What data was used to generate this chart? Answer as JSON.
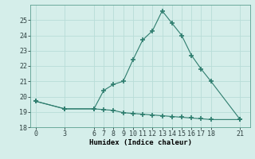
{
  "xlabel": "Humidex (Indice chaleur)",
  "x_upper": [
    0,
    3,
    6,
    7,
    8,
    9,
    10,
    11,
    12,
    13,
    14,
    15,
    16,
    17,
    18,
    21
  ],
  "y_upper": [
    19.7,
    19.2,
    19.2,
    20.4,
    20.8,
    21.0,
    22.4,
    23.7,
    24.3,
    25.6,
    24.8,
    24.0,
    22.7,
    21.8,
    21.0,
    18.5
  ],
  "x_lower": [
    0,
    3,
    6,
    7,
    8,
    9,
    10,
    11,
    12,
    13,
    14,
    15,
    16,
    17,
    18,
    21
  ],
  "y_lower": [
    19.7,
    19.2,
    19.2,
    19.15,
    19.1,
    18.95,
    18.9,
    18.85,
    18.8,
    18.75,
    18.7,
    18.65,
    18.6,
    18.55,
    18.5,
    18.5
  ],
  "line_color": "#2e7d6e",
  "marker": "+",
  "marker_size": 4,
  "marker_lw": 1.2,
  "bg_color": "#d5eeea",
  "grid_color": "#b8ddd8",
  "ylim": [
    18,
    26
  ],
  "xlim": [
    -0.5,
    22
  ],
  "yticks": [
    18,
    19,
    20,
    21,
    22,
    23,
    24,
    25
  ],
  "xticks": [
    0,
    3,
    6,
    7,
    8,
    9,
    10,
    11,
    12,
    13,
    14,
    15,
    16,
    17,
    18,
    21
  ],
  "xlabel_fontsize": 6.5,
  "tick_fontsize": 6
}
